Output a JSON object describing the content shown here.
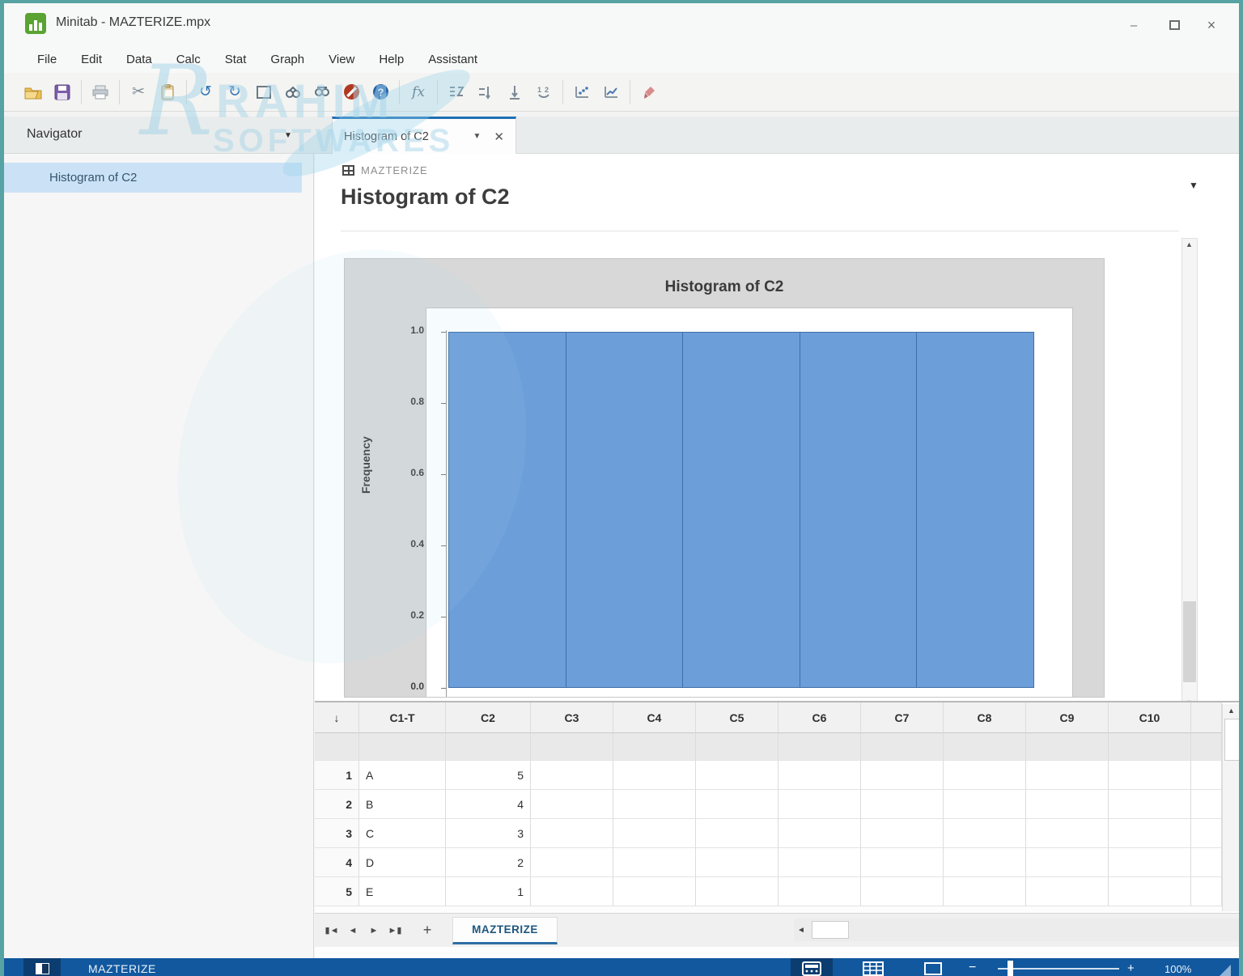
{
  "window": {
    "title": "Minitab - MAZTERIZE.mpx"
  },
  "menu": {
    "items": [
      "File",
      "Edit",
      "Data",
      "Calc",
      "Stat",
      "Graph",
      "View",
      "Help",
      "Assistant"
    ]
  },
  "toolbar": {
    "icons": [
      "open-folder-icon",
      "save-icon",
      "print-icon",
      "cut-icon",
      "paste-icon",
      "undo-icon",
      "redo-icon",
      "new-window-icon",
      "find-next-icon",
      "find-previous-icon",
      "cancel-icon",
      "help-icon",
      "formula-icon",
      "insert-rows-icon",
      "standardize-icon",
      "stack-icon",
      "recode-icon",
      "scatterplot-icon",
      "graph-builder-icon",
      "brush-icon"
    ]
  },
  "navigator": {
    "title": "Navigator",
    "items": [
      {
        "label": "Histogram of C2",
        "selected": true
      }
    ]
  },
  "document_tab": {
    "label": "Histogram of C2"
  },
  "output": {
    "worksheet_label": "MAZTERIZE",
    "heading": "Histogram of C2"
  },
  "chart_data": {
    "type": "bar",
    "title": "Histogram of C2",
    "xlabel": "",
    "ylabel": "Frequency",
    "ylim": [
      0,
      1.0
    ],
    "yticks": [
      "1.0",
      "0.8",
      "0.6",
      "0.4",
      "0.2",
      "0.0"
    ],
    "values": [
      1.0,
      1.0,
      1.0,
      1.0,
      1.0
    ],
    "bar_color": "#6c9ed9",
    "bar_border": "#3f6ea8",
    "grid": false,
    "legend": "none"
  },
  "table": {
    "corner_arrow": "↓",
    "columns": [
      "C1-T",
      "C2",
      "C3",
      "C4",
      "C5",
      "C6",
      "C7",
      "C8",
      "C9",
      "C10"
    ],
    "rows": [
      {
        "num": "1",
        "c1t": "A",
        "c2": "5"
      },
      {
        "num": "2",
        "c1t": "B",
        "c2": "4"
      },
      {
        "num": "3",
        "c1t": "C",
        "c2": "3"
      },
      {
        "num": "4",
        "c1t": "D",
        "c2": "2"
      },
      {
        "num": "5",
        "c1t": "E",
        "c2": "1"
      }
    ]
  },
  "worksheet_bar": {
    "tab": "MAZTERIZE",
    "add_label": "+"
  },
  "status_bar": {
    "worksheet": "MAZTERIZE",
    "zoom": "100%"
  },
  "watermark": {
    "initial": "R",
    "line1": "RAHIM",
    "line2": "SOFTWARES"
  }
}
